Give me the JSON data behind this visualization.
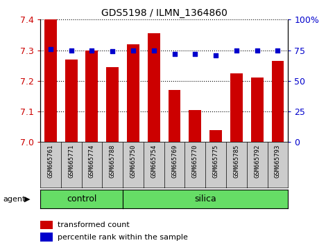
{
  "title": "GDS5198 / ILMN_1364860",
  "samples": [
    "GSM665761",
    "GSM665771",
    "GSM665774",
    "GSM665788",
    "GSM665750",
    "GSM665754",
    "GSM665769",
    "GSM665770",
    "GSM665775",
    "GSM665785",
    "GSM665792",
    "GSM665793"
  ],
  "bar_values": [
    7.4,
    7.27,
    7.3,
    7.245,
    7.32,
    7.355,
    7.17,
    7.105,
    7.04,
    7.225,
    7.21,
    7.265
  ],
  "percentile_values": [
    76,
    75,
    75,
    74,
    75,
    75,
    72,
    72,
    71,
    75,
    75,
    75
  ],
  "n_control": 4,
  "n_silica": 8,
  "ylim_left": [
    7.0,
    7.4
  ],
  "ylim_right": [
    0,
    100
  ],
  "yticks_left": [
    7.0,
    7.1,
    7.2,
    7.3,
    7.4
  ],
  "yticks_right": [
    0,
    25,
    50,
    75,
    100
  ],
  "ytick_labels_right": [
    "0",
    "25",
    "50",
    "75",
    "100%"
  ],
  "bar_color": "#cc0000",
  "dot_color": "#0000cc",
  "group_bg": "#66dd66",
  "tick_bg": "#cccccc",
  "bar_width": 0.6,
  "legend_bar_label": "transformed count",
  "legend_dot_label": "percentile rank within the sample",
  "agent_label": "agent",
  "control_label": "control",
  "silica_label": "silica"
}
